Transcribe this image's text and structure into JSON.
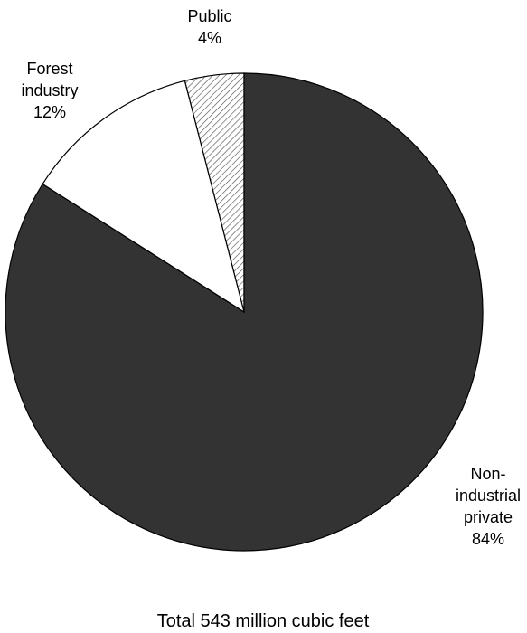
{
  "chart_data": {
    "type": "pie",
    "slices": [
      {
        "label_lines": [
          "Public",
          "4%"
        ],
        "value": 4,
        "fill": "hatch"
      },
      {
        "label_lines": [
          "Non-",
          "industrial",
          "private",
          "84%"
        ],
        "value": 84,
        "fill": "#333333"
      },
      {
        "label_lines": [
          "Forest",
          "industry",
          "12%"
        ],
        "value": 12,
        "fill": "#ffffff"
      }
    ],
    "start_angle_deg": -14.4,
    "direction": "clockwise",
    "caption": "Total 543 million cubic feet"
  }
}
